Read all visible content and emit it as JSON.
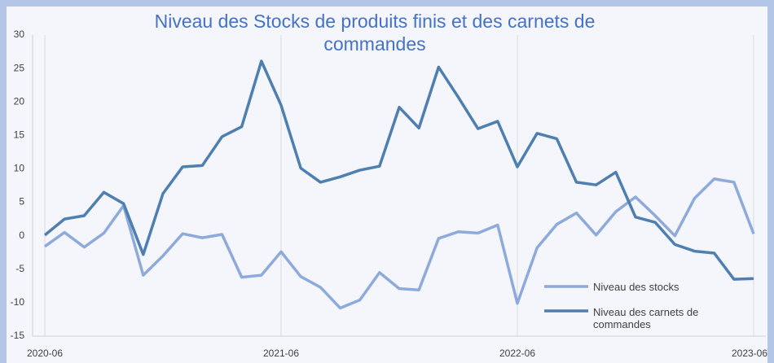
{
  "chart_data": {
    "type": "line",
    "title": "Niveau des Stocks de produits finis et des carnets de commandes",
    "categories": [
      "2020-06",
      null,
      null,
      null,
      null,
      null,
      null,
      null,
      null,
      null,
      null,
      null,
      "2021-06",
      null,
      null,
      null,
      null,
      null,
      null,
      null,
      null,
      null,
      null,
      null,
      "2022-06",
      null,
      null,
      null,
      null,
      null,
      null,
      null,
      null,
      null,
      null,
      null,
      "2023-06"
    ],
    "series": [
      {
        "name": "Niveau des stocks",
        "color": "#8eaadb",
        "values": [
          -1.6,
          0.5,
          -1.7,
          0.4,
          4.5,
          -5.9,
          -3.0,
          0.3,
          -0.3,
          0.2,
          -6.2,
          -5.9,
          -2.4,
          -6.1,
          -7.7,
          -10.8,
          -9.6,
          -5.5,
          -7.9,
          -8.1,
          -0.4,
          0.6,
          0.4,
          1.6,
          -10.1,
          -1.8,
          1.7,
          3.4,
          0.1,
          3.6,
          5.8,
          3.0,
          0,
          5.6,
          8.5,
          8.0,
          0.3
        ]
      },
      {
        "name": "Niveau des carnets de commandes",
        "color": "#4e7fb0",
        "values": [
          0.1,
          2.5,
          3.0,
          6.5,
          4.8,
          -2.8,
          6.3,
          10.3,
          10.5,
          14.8,
          16.3,
          26.1,
          19.5,
          10.1,
          8.0,
          8.8,
          9.8,
          10.4,
          19.2,
          16.1,
          25.2,
          20.7,
          16.0,
          17.1,
          10.3,
          15.3,
          14.5,
          8.0,
          7.6,
          9.5,
          2.8,
          2.0,
          -1.3,
          -2.3,
          -2.6,
          -6.5,
          -6.4
        ]
      }
    ],
    "ylim": [
      -15,
      30
    ],
    "yticks": [
      -15,
      -10,
      -5,
      0,
      5,
      10,
      15,
      20,
      25,
      30
    ],
    "grid": "x"
  }
}
